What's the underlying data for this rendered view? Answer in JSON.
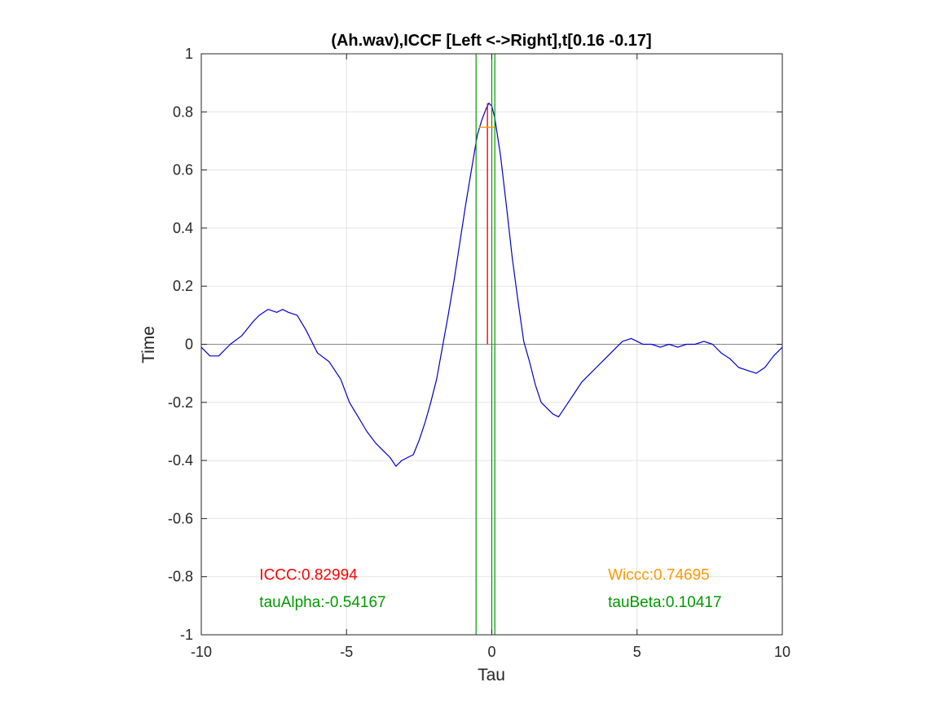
{
  "chart_data": {
    "type": "line",
    "title": "(Ah.wav),ICCF [Left <->Right],t[0.16 -0.17]",
    "xlabel": "Tau",
    "ylabel": "Time",
    "xlim": [
      -10,
      10
    ],
    "ylim": [
      -1,
      1
    ],
    "grid": true,
    "x_ticks": [
      -10,
      -5,
      0,
      5,
      10
    ],
    "x_tick_labels": [
      "-10",
      "-5",
      "0",
      "5",
      "10"
    ],
    "y_ticks": [
      -1,
      -0.8,
      -0.6,
      -0.4,
      -0.2,
      0,
      0.2,
      0.4,
      0.6,
      0.8,
      1
    ],
    "y_tick_labels": [
      "-1",
      "-0.8",
      "-0.6",
      "-0.4",
      "-0.2",
      "0",
      "0.2",
      "0.4",
      "0.6",
      "0.8",
      "1"
    ],
    "series": [
      {
        "color": "#0000cc",
        "x": [
          -10,
          -9.7,
          -9.4,
          -9.0,
          -8.6,
          -8.2,
          -8.0,
          -7.7,
          -7.4,
          -7.2,
          -7.0,
          -6.7,
          -6.4,
          -6.0,
          -5.6,
          -5.2,
          -4.9,
          -4.6,
          -4.3,
          -4.0,
          -3.7,
          -3.5,
          -3.3,
          -3.1,
          -2.9,
          -2.7,
          -2.5,
          -2.3,
          -2.1,
          -1.9,
          -1.7,
          -1.5,
          -1.3,
          -1.1,
          -0.9,
          -0.7,
          -0.5,
          -0.35,
          -0.2,
          -0.1,
          0.0,
          0.1,
          0.3,
          0.5,
          0.7,
          0.9,
          1.1,
          1.3,
          1.5,
          1.7,
          1.9,
          2.1,
          2.3,
          2.5,
          2.7,
          2.9,
          3.1,
          3.3,
          3.6,
          3.9,
          4.2,
          4.5,
          4.8,
          5.0,
          5.2,
          5.5,
          5.8,
          6.1,
          6.4,
          6.7,
          7.0,
          7.3,
          7.6,
          7.9,
          8.2,
          8.5,
          8.8,
          9.1,
          9.4,
          9.7,
          10
        ],
        "y": [
          -0.01,
          -0.04,
          -0.04,
          0.0,
          0.03,
          0.08,
          0.1,
          0.12,
          0.11,
          0.12,
          0.11,
          0.1,
          0.05,
          -0.03,
          -0.06,
          -0.12,
          -0.2,
          -0.25,
          -0.3,
          -0.34,
          -0.37,
          -0.39,
          -0.42,
          -0.4,
          -0.39,
          -0.38,
          -0.33,
          -0.27,
          -0.2,
          -0.12,
          -0.01,
          0.1,
          0.22,
          0.35,
          0.48,
          0.6,
          0.72,
          0.77,
          0.81,
          0.83,
          0.82,
          0.78,
          0.65,
          0.48,
          0.3,
          0.15,
          0.01,
          -0.06,
          -0.14,
          -0.2,
          -0.22,
          -0.24,
          -0.25,
          -0.22,
          -0.19,
          -0.16,
          -0.13,
          -0.11,
          -0.08,
          -0.05,
          -0.02,
          0.01,
          0.02,
          0.01,
          0.0,
          0.0,
          -0.01,
          0.0,
          -0.01,
          0.0,
          0.0,
          0.01,
          0.0,
          -0.03,
          -0.05,
          -0.08,
          -0.09,
          -0.1,
          -0.08,
          -0.04,
          -0.01
        ]
      }
    ],
    "markers": {
      "iccc_line": {
        "x": -0.15,
        "y0": 0,
        "y1": 0.82994,
        "color": "#ff0000"
      },
      "wiccc_line": {
        "x0": -0.45,
        "x1": 0.1,
        "y": 0.74695,
        "color": "#ff9900"
      },
      "vlines": [
        {
          "x": -0.54167,
          "color": "#009900"
        },
        {
          "x": 0.0,
          "color": "#009900"
        },
        {
          "x": 0.10417,
          "color": "#009900"
        }
      ],
      "zero_line": {
        "y": 0,
        "color": "#888888"
      }
    },
    "annotations": [
      {
        "text": "ICCC:0.82994",
        "x": -8.0,
        "y": -0.81,
        "color": "#ff0000"
      },
      {
        "text": "tauAlpha:-0.54167",
        "x": -8.0,
        "y": -0.905,
        "color": "#009900"
      },
      {
        "text": "Wiccc:0.74695",
        "x": 4.0,
        "y": -0.81,
        "color": "#ff9900"
      },
      {
        "text": "tauBeta:0.10417",
        "x": 4.0,
        "y": -0.905,
        "color": "#009900"
      }
    ]
  }
}
